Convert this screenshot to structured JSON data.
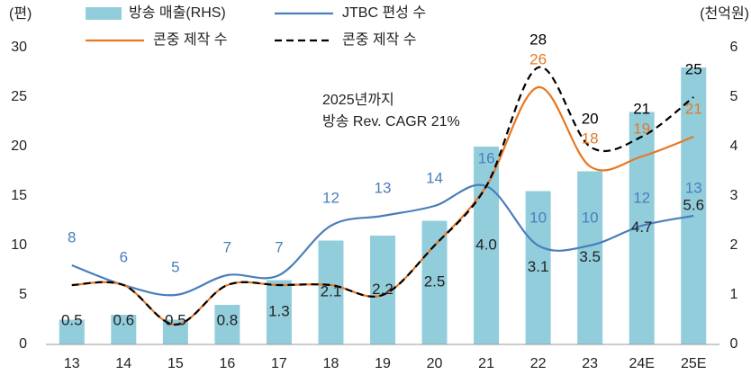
{
  "chart_data": {
    "type": "combo",
    "categories": [
      "13",
      "14",
      "15",
      "16",
      "17",
      "18",
      "19",
      "20",
      "21",
      "22",
      "23",
      "24E",
      "25E"
    ],
    "series": [
      {
        "name": "방송 매출(RHS)",
        "kind": "bar",
        "axis": "y2",
        "color": "#92cddc",
        "values": [
          0.5,
          0.6,
          0.5,
          0.8,
          1.3,
          2.1,
          2.2,
          2.5,
          4.0,
          3.1,
          3.5,
          4.7,
          5.6
        ],
        "value_labels": [
          "0.5",
          "0.6",
          "0.5",
          "0.8",
          "1.3",
          "2.1",
          "2.2",
          "2.5",
          "4.0",
          "3.1",
          "3.5",
          "4.7",
          "5.6"
        ]
      },
      {
        "name": "JTBC 편성 수",
        "kind": "line",
        "color": "#4a7ebb",
        "values": [
          8,
          6,
          5,
          7,
          7,
          12,
          13,
          14,
          16,
          10,
          10,
          12,
          13
        ]
      },
      {
        "name": "콘중 제작 수",
        "kind": "line",
        "color": "#e87722",
        "values": [
          6,
          6,
          2,
          6,
          6,
          6,
          5,
          10,
          16,
          26,
          18,
          19,
          21
        ],
        "value_labels": [
          null,
          null,
          null,
          null,
          null,
          null,
          null,
          null,
          null,
          "26",
          "18",
          "19",
          "21"
        ]
      },
      {
        "name": "콘중 제작 수",
        "kind": "line",
        "dashed": true,
        "color": "#000000",
        "values": [
          6,
          6,
          2,
          6,
          6,
          6,
          5,
          10,
          16,
          28,
          20,
          21,
          25
        ],
        "value_labels": [
          null,
          null,
          null,
          null,
          null,
          null,
          null,
          null,
          null,
          "28",
          "20",
          "21",
          "25"
        ]
      }
    ],
    "ylim": [
      0,
      30
    ],
    "yticks": [
      0,
      5,
      10,
      15,
      20,
      25,
      30
    ],
    "y2lim": [
      0,
      6
    ],
    "y2ticks": [
      0,
      1,
      2,
      3,
      4,
      5,
      6
    ],
    "y_label": "(편)",
    "y2_label": "(천억원)",
    "annotation": [
      "2025년까지",
      "방송 Rev. CAGR 21%"
    ]
  }
}
